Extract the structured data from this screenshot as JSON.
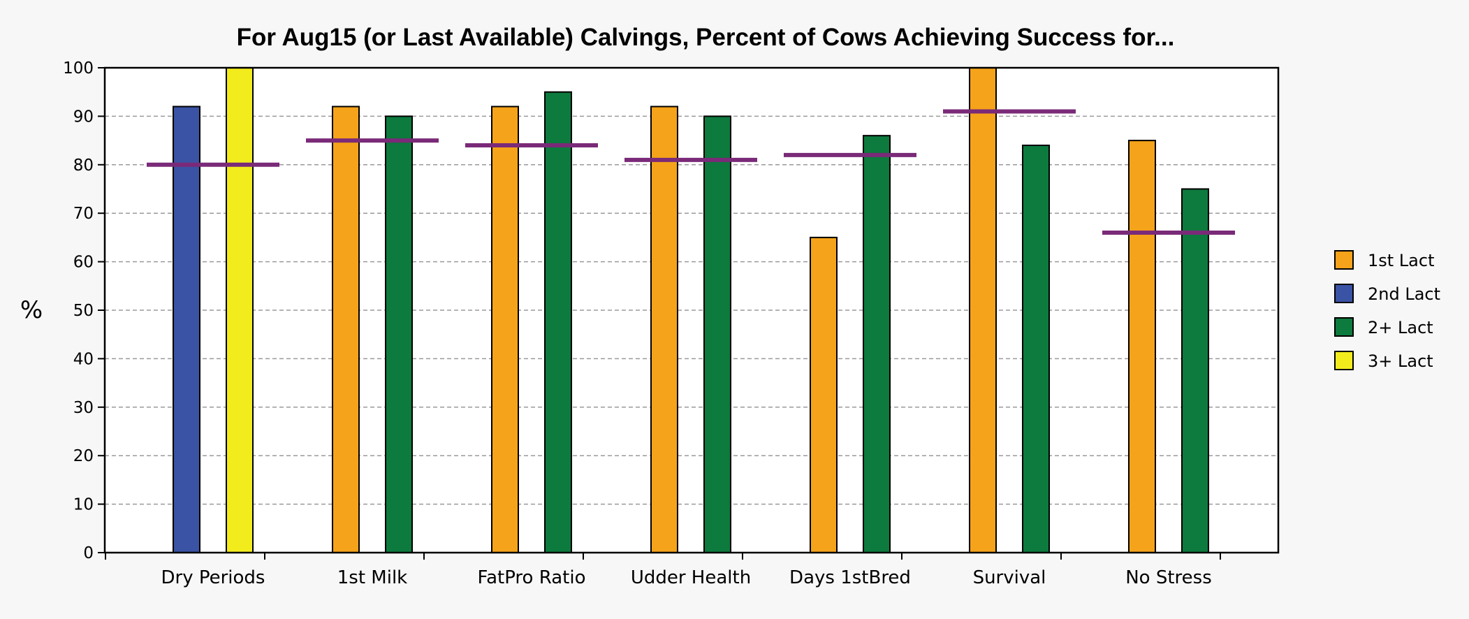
{
  "chart_data": {
    "type": "bar",
    "title": "For Aug15 (or Last Available) Calvings, Percent of Cows Achieving Success for...",
    "ylabel": "%",
    "xlabel": "",
    "ylim": [
      0,
      100
    ],
    "yticks": [
      0,
      10,
      20,
      30,
      40,
      50,
      60,
      70,
      80,
      90,
      100
    ],
    "grid": true,
    "legend_position": "right",
    "categories": [
      "Dry Periods",
      "1st Milk",
      "FatPro Ratio",
      "Udder Health",
      "Days 1stBred",
      "Survival",
      "No Stress"
    ],
    "series": [
      {
        "name": "1st Lact",
        "color": "#f5a31a",
        "values": [
          null,
          92,
          92,
          92,
          65,
          100,
          85
        ]
      },
      {
        "name": "2nd Lact",
        "color": "#3a53a4",
        "values": [
          92,
          null,
          null,
          null,
          null,
          null,
          null
        ]
      },
      {
        "name": "2+ Lact",
        "color": "#0d7a3e",
        "values": [
          null,
          90,
          95,
          90,
          86,
          84,
          75
        ]
      },
      {
        "name": "3+ Lact",
        "color": "#f2ec1c",
        "values": [
          100,
          null,
          null,
          null,
          null,
          null,
          null
        ]
      }
    ],
    "benchmarks": {
      "color": "#7a2a78",
      "values": [
        80,
        85,
        84,
        81,
        82,
        91,
        66
      ]
    }
  }
}
